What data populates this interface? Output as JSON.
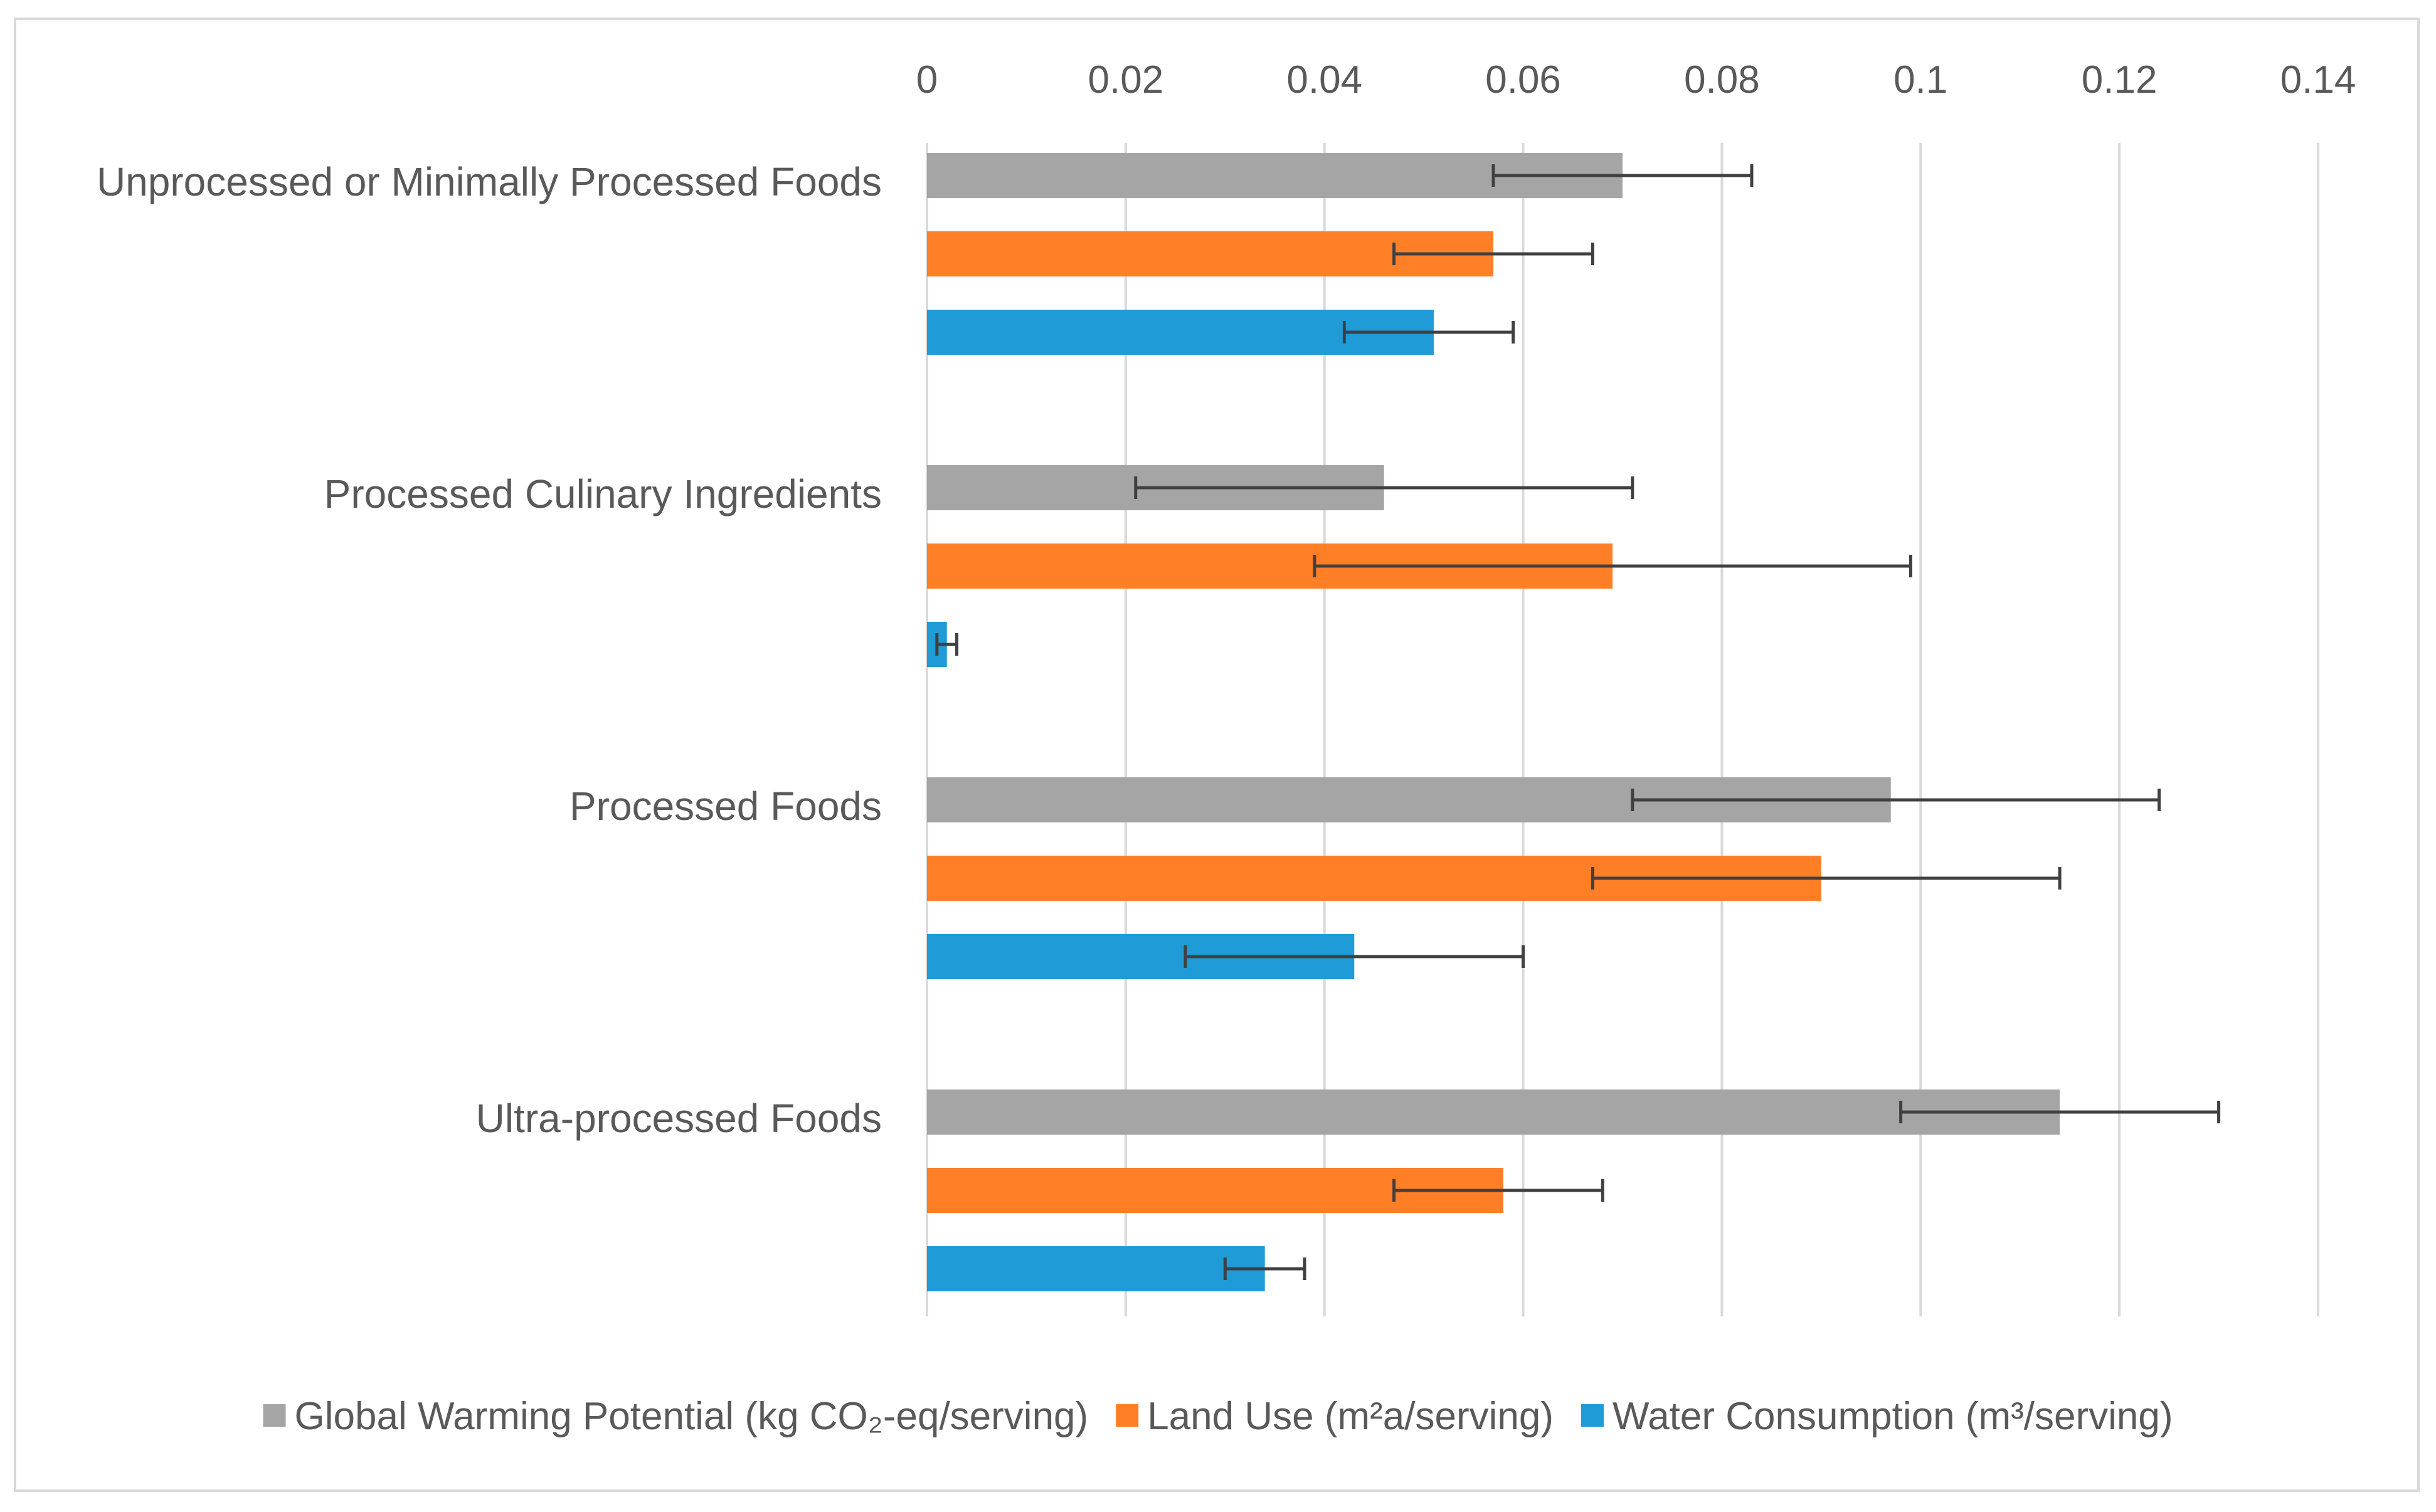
{
  "chart_data": {
    "type": "bar",
    "orientation": "horizontal",
    "title": "",
    "xlabel": "",
    "ylabel": "",
    "xlim": [
      0,
      0.14
    ],
    "x_ticks": [
      0,
      0.02,
      0.04,
      0.06,
      0.08,
      0.1,
      0.12,
      0.14
    ],
    "x_tick_labels": [
      "0",
      "0.02",
      "0.04",
      "0.06",
      "0.08",
      "0.1",
      "0.12",
      "0.14"
    ],
    "x_axis_position": "top",
    "grid": true,
    "legend_position": "bottom",
    "categories": [
      "Unprocessed or Minimally Processed Foods",
      "Processed Culinary Ingredients",
      "Processed Foods",
      "Ultra-processed Foods"
    ],
    "series": [
      {
        "name": "Global Warming Potential (kg CO₂-eq/serving)",
        "color": "#a5a5a5",
        "values": [
          0.07,
          0.046,
          0.097,
          0.114
        ],
        "error_low": [
          0.057,
          0.021,
          0.071,
          0.098
        ],
        "error_high": [
          0.083,
          0.071,
          0.124,
          0.13
        ]
      },
      {
        "name": "Land Use (m²a/serving)",
        "color": "#ff7f27",
        "values": [
          0.057,
          0.069,
          0.09,
          0.058
        ],
        "error_low": [
          0.047,
          0.039,
          0.067,
          0.047
        ],
        "error_high": [
          0.067,
          0.099,
          0.114,
          0.068
        ]
      },
      {
        "name": "Water Consumption (m³/serving)",
        "color": "#1f9bd7",
        "values": [
          0.051,
          0.002,
          0.043,
          0.034
        ],
        "error_low": [
          0.042,
          0.001,
          0.026,
          0.03
        ],
        "error_high": [
          0.059,
          0.003,
          0.06,
          0.038
        ]
      }
    ]
  }
}
